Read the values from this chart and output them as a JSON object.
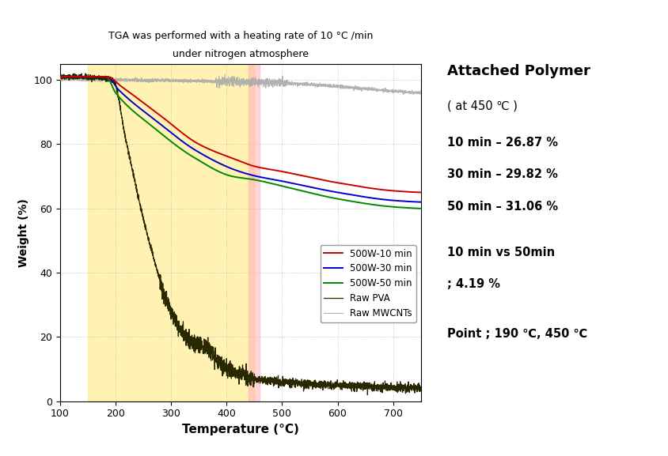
{
  "title_line1": "TGA was performed with a heating rate of 10 °C /min",
  "title_line2": "under nitrogen atmosphere",
  "xlabel": "Temperature (°C)",
  "ylabel": "Weight (%)",
  "xlim": [
    100,
    750
  ],
  "ylim": [
    0,
    105
  ],
  "yticks": [
    0,
    20,
    40,
    60,
    80,
    100
  ],
  "xticks": [
    100,
    200,
    300,
    400,
    500,
    600,
    700
  ],
  "yellow_span": [
    150,
    450
  ],
  "pink_span": [
    440,
    460
  ],
  "annotation_title": "Attached Polymer",
  "annotation_at": "( at 450 ℃ )",
  "annotation_10min": "10 min – 26.87 %",
  "annotation_30min": "30 min – 29.82 %",
  "annotation_50min": "50 min – 31.06 %",
  "annotation_compare": "10 min vs 50min",
  "annotation_diff": "; 4.19 %",
  "annotation_point": "Point ; 190 ℃, 450 ℃",
  "legend_labels": [
    "500W-10 min",
    "500W-30 min",
    "500W-50 min",
    "Raw PVA",
    "Raw MWCNTs"
  ],
  "line_colors": [
    "#cc0000",
    "#0000cc",
    "#008800",
    "#2a2800",
    "#aaaaaa"
  ],
  "background_color": "#ffffff"
}
